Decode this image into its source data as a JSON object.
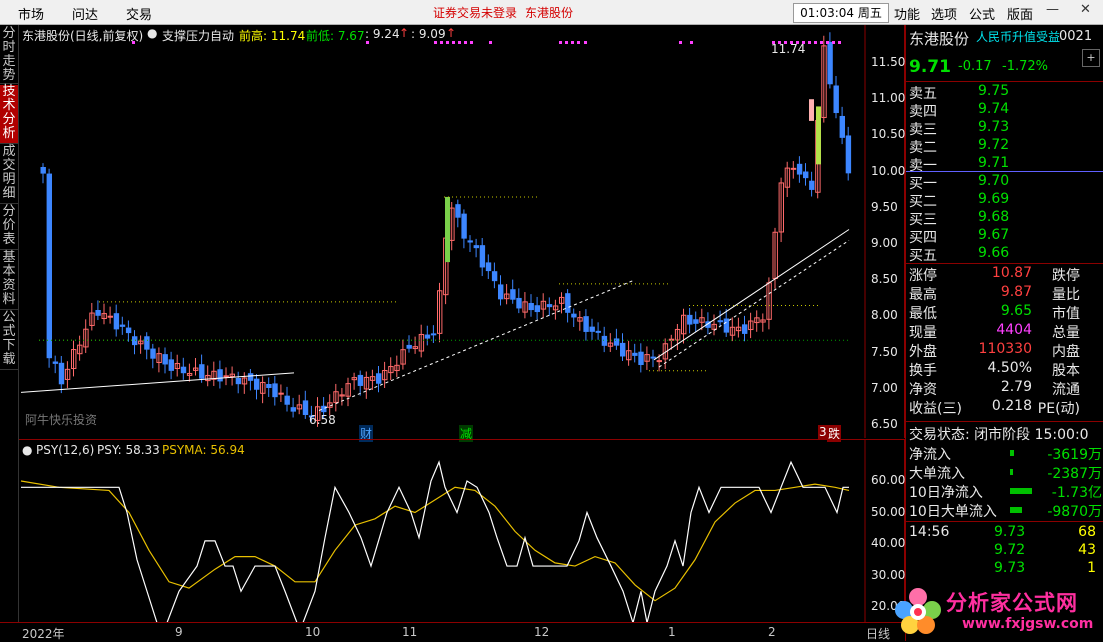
{
  "menu": {
    "items": [
      "市场",
      "问达",
      "交易"
    ],
    "warning": "证券交易未登录",
    "stock_name": "东港股份",
    "clock": "01:03:04 周五",
    "right_items": [
      "功能",
      "选项",
      "公式",
      "版面"
    ]
  },
  "left_tabs": [
    "分时走势",
    "技术分析",
    "成交明细",
    "分价表",
    "基本资料",
    "公式下载"
  ],
  "main_chart": {
    "title": "东港股份(日线,前复权)",
    "indicator": "支撑压力自动",
    "prev_high_label": "前高: 11.74",
    "prev_low_label": "前低: 7.67",
    "val1": ": 9.24",
    "val2": ": 9.09",
    "price_axis": [
      "11.50",
      "11.00",
      "10.50",
      "10.00",
      "9.50",
      "9.00",
      "8.50",
      "8.00",
      "7.50",
      "7.00",
      "6.50"
    ],
    "max_label": "11.74",
    "min_label": "6.58",
    "watermark_left": "阿牛快乐投资",
    "events": [
      "财",
      "减",
      "跌"
    ],
    "event3_num": "3"
  },
  "sub_chart": {
    "title": "PSY(12,6)",
    "psy_label": "PSY: 58.33",
    "psyma_label": "PSYMA: 56.94",
    "axis": [
      "60.00",
      "50.00",
      "40.00",
      "30.00",
      "20.00"
    ]
  },
  "time_axis": {
    "labels": [
      "2022年",
      "9",
      "10",
      "11",
      "12",
      "1",
      "2"
    ],
    "mode": "日线"
  },
  "quote": {
    "name": "东港股份",
    "banner": "人民币升值受益",
    "code": "0021",
    "price": "9.71",
    "change": "-0.17",
    "pct": "-1.72%",
    "asks": [
      {
        "label": "卖五",
        "price": "9.75"
      },
      {
        "label": "卖四",
        "price": "9.74"
      },
      {
        "label": "卖三",
        "price": "9.73"
      },
      {
        "label": "卖二",
        "price": "9.72"
      },
      {
        "label": "卖一",
        "price": "9.71"
      }
    ],
    "bids": [
      {
        "label": "买一",
        "price": "9.70"
      },
      {
        "label": "买二",
        "price": "9.69"
      },
      {
        "label": "买三",
        "price": "9.68"
      },
      {
        "label": "买四",
        "price": "9.67"
      },
      {
        "label": "买五",
        "price": "9.66"
      }
    ],
    "stats": [
      {
        "l": "涨停",
        "v": "10.87",
        "c": "red",
        "r": "跌停"
      },
      {
        "l": "最高",
        "v": "9.87",
        "c": "red",
        "r": "量比"
      },
      {
        "l": "最低",
        "v": "9.65",
        "c": "green",
        "r": "市值"
      },
      {
        "l": "现量",
        "v": "4404",
        "c": "magenta",
        "r": "总量"
      },
      {
        "l": "外盘",
        "v": "110330",
        "c": "red",
        "r": "内盘"
      },
      {
        "l": "换手",
        "v": "4.50%",
        "c": "white",
        "r": "股本"
      },
      {
        "l": "净资",
        "v": "2.79",
        "c": "white",
        "r": "流通"
      },
      {
        "l": "收益(三)",
        "v": "0.218",
        "c": "white",
        "r": "PE(动)"
      }
    ],
    "trade_state": "交易状态: 闭市阶段 15:00:0",
    "flows": [
      {
        "l": "净流入",
        "v": "-3619万"
      },
      {
        "l": "大单流入",
        "v": "-2387万"
      },
      {
        "l": "10日净流入",
        "v": "-1.73亿"
      },
      {
        "l": "10日大单流入",
        "v": "-9870万"
      }
    ],
    "ticks": [
      {
        "t": "14:56",
        "p": "9.73",
        "v": "68"
      },
      {
        "t": "",
        "p": "9.72",
        "v": "43"
      },
      {
        "t": "",
        "p": "9.73",
        "v": "1"
      }
    ]
  },
  "logo": {
    "text": "分析家公式网",
    "url": "www.fxjgsw.com"
  },
  "colors": {
    "up": "#ff4040",
    "down": "#00e000",
    "bg": "#000000",
    "border": "#8b0000",
    "psy": "#ffffff",
    "psyma": "#e8c000"
  }
}
